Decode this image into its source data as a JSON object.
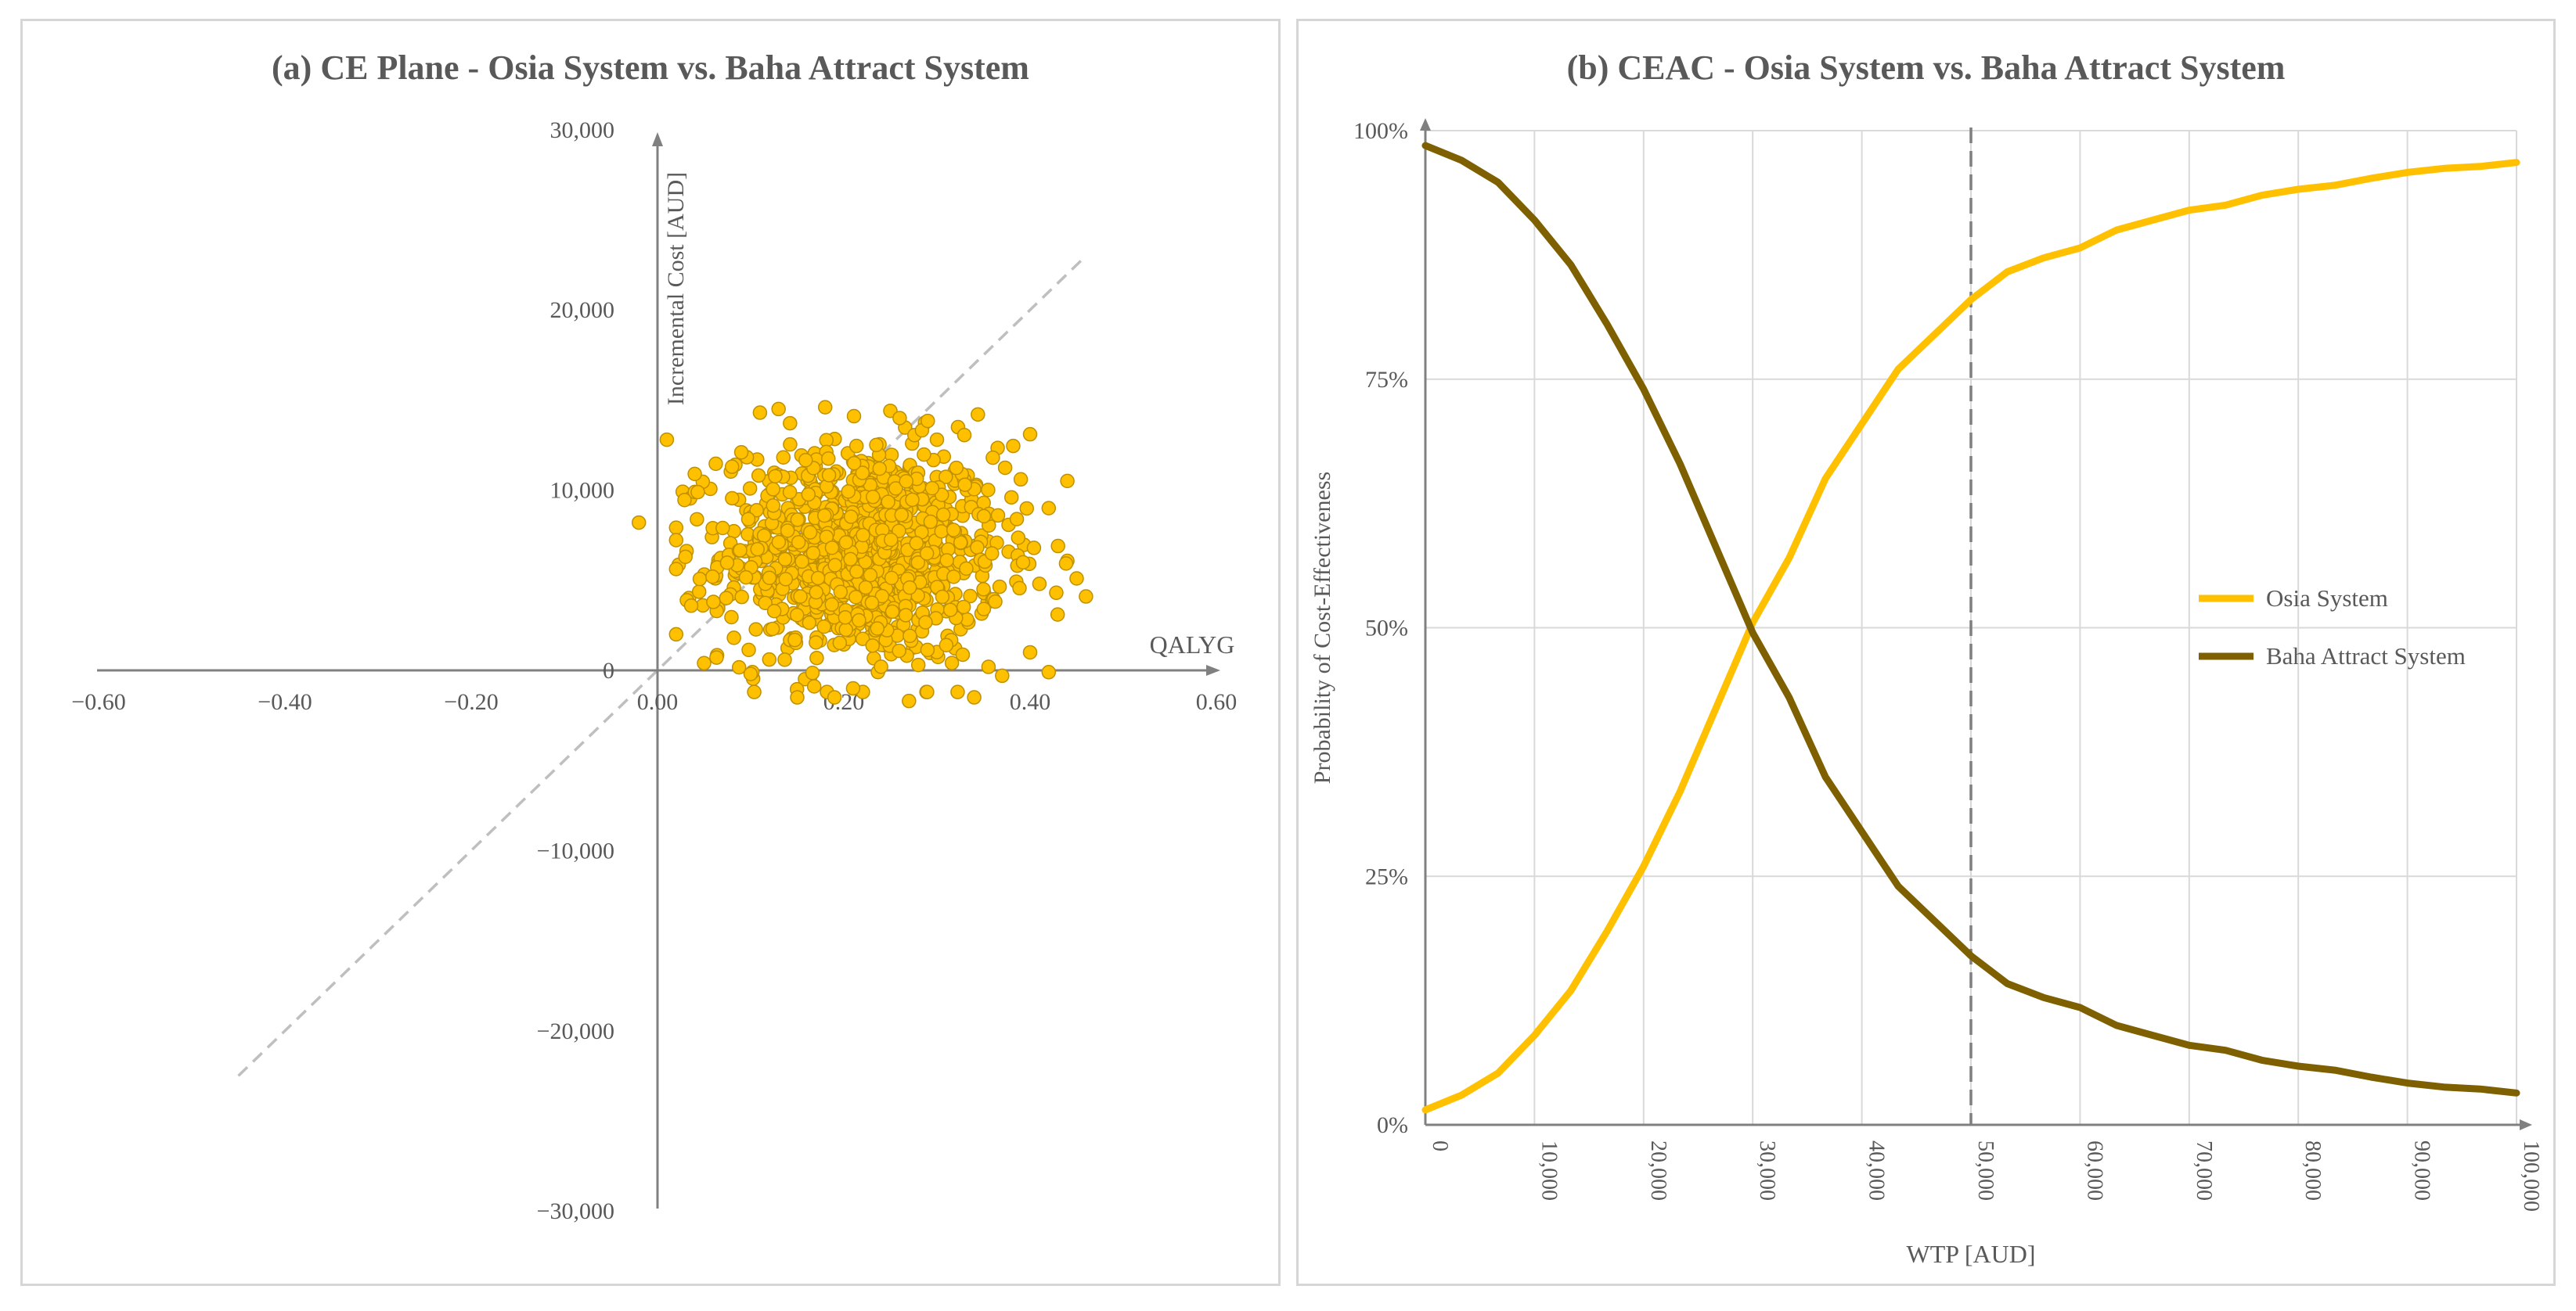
{
  "panel_a": {
    "title": "(a) CE Plane - Osia System vs. Baha Attract System",
    "xlabel": "QALYG",
    "ylabel": "Incremental Cost [AUD]",
    "x_ticks": [
      "−0.60",
      "−0.40",
      "−0.20",
      "0.00",
      "0.20",
      "0.40",
      "0.60"
    ],
    "y_ticks": [
      "30,000",
      "20,000",
      "10,000",
      "0",
      "−10,000",
      "−20,000",
      "−30,000"
    ]
  },
  "panel_b": {
    "title": "(b) CEAC - Osia System vs. Baha Attract System",
    "xlabel": "WTP [AUD]",
    "ylabel": "Probability of Cost-Effectiveness",
    "x_ticks": [
      "0",
      "10,000",
      "20,000",
      "30,000",
      "40,000",
      "50,000",
      "60,000",
      "70,000",
      "80,000",
      "90,000",
      "100,000"
    ],
    "y_ticks": [
      "100%",
      "75%",
      "50%",
      "25%",
      "0%"
    ],
    "legend": [
      "Osia System",
      "Baha Attract System"
    ]
  },
  "chart_data": [
    {
      "type": "scatter",
      "title": "(a) CE Plane - Osia System vs. Baha Attract System",
      "xlabel": "QALYG",
      "ylabel": "Incremental Cost [AUD]",
      "xlim": [
        -0.6,
        0.6
      ],
      "ylim": [
        -30000,
        30000
      ],
      "marker_color": "#FFC000",
      "marker_edge": "#BF9000",
      "threshold_line": {
        "wtp": 50000,
        "style": "dashed",
        "color": "#BFBFBF"
      },
      "point_cloud": {
        "n": 1000,
        "x_center": 0.22,
        "x_sd": 0.075,
        "y_center": 6500,
        "y_sd": 3000
      },
      "series": [
        {
          "name": "",
          "points": [
            [
              -0.02,
              8200
            ],
            [
              0.01,
              12800
            ],
            [
              0.11,
              14300
            ],
            [
              0.13,
              14500
            ],
            [
              0.18,
              14600
            ],
            [
              0.25,
              14400
            ],
            [
              0.26,
              14000
            ],
            [
              0.4,
              13100
            ],
            [
              0.46,
              4100
            ],
            [
              0.45,
              5100
            ],
            [
              0.43,
              6900
            ],
            [
              0.42,
              9000
            ],
            [
              0.41,
              4800
            ],
            [
              0.4,
              1000
            ],
            [
              0.42,
              -100
            ],
            [
              0.37,
              -300
            ],
            [
              0.34,
              -1500
            ],
            [
              0.27,
              -1700
            ],
            [
              0.21,
              -1000
            ],
            [
              0.19,
              -1500
            ],
            [
              0.15,
              -1500
            ],
            [
              0.1,
              -200
            ],
            [
              0.05,
              400
            ],
            [
              0.02,
              2000
            ],
            [
              0.03,
              6300
            ],
            [
              0.04,
              10900
            ],
            [
              0.08,
              11300
            ],
            [
              0.3,
              12800
            ],
            [
              0.33,
              10300
            ],
            [
              0.36,
              11800
            ],
            [
              0.38,
              9600
            ],
            [
              0.39,
              10600
            ],
            [
              0.35,
              4500
            ],
            [
              0.12,
              600
            ],
            [
              0.28,
              300
            ],
            [
              0.06,
              3800
            ],
            [
              0.07,
              7900
            ],
            [
              0.09,
              12100
            ],
            [
              0.31,
              1400
            ],
            [
              0.24,
              200
            ]
          ]
        }
      ]
    },
    {
      "type": "line",
      "title": "(b) CEAC - Osia System vs. Baha Attract System",
      "xlabel": "WTP [AUD]",
      "ylabel": "Probability of Cost-Effectiveness",
      "xlim": [
        0,
        100000
      ],
      "ylim": [
        0,
        1
      ],
      "grid": true,
      "legend_position": "right",
      "reference_line": {
        "x": 50000,
        "style": "dashed",
        "color": "#7F7F7F"
      },
      "x": [
        0,
        3333,
        6667,
        10000,
        13333,
        16667,
        20000,
        23333,
        26667,
        30000,
        33333,
        36667,
        40000,
        43333,
        46667,
        50000,
        53333,
        56667,
        60000,
        63333,
        66667,
        70000,
        73333,
        76667,
        80000,
        83333,
        86667,
        90000,
        93333,
        96667,
        100000
      ],
      "series": [
        {
          "name": "Osia System",
          "color": "#FFC000",
          "values": [
            0.015,
            0.03,
            0.052,
            0.09,
            0.135,
            0.195,
            0.26,
            0.335,
            0.42,
            0.505,
            0.57,
            0.65,
            0.705,
            0.76,
            0.795,
            0.83,
            0.858,
            0.872,
            0.882,
            0.9,
            0.91,
            0.92,
            0.925,
            0.935,
            0.941,
            0.945,
            0.952,
            0.958,
            0.962,
            0.964,
            0.968
          ]
        },
        {
          "name": "Baha Attract System",
          "color": "#7F6000",
          "values": [
            0.985,
            0.97,
            0.948,
            0.91,
            0.865,
            0.805,
            0.74,
            0.665,
            0.58,
            0.495,
            0.43,
            0.35,
            0.295,
            0.24,
            0.205,
            0.17,
            0.142,
            0.128,
            0.118,
            0.1,
            0.09,
            0.08,
            0.075,
            0.065,
            0.059,
            0.055,
            0.048,
            0.042,
            0.038,
            0.036,
            0.032
          ]
        }
      ]
    }
  ]
}
